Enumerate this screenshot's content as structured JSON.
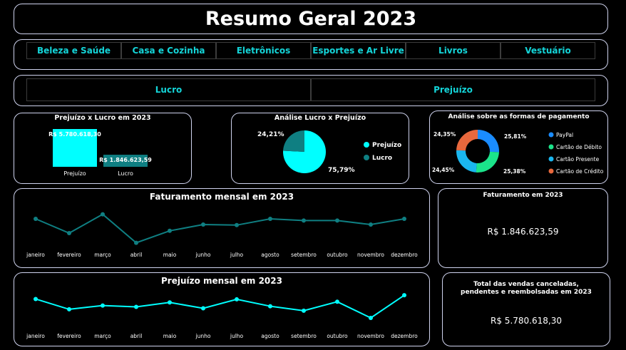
{
  "title": "Resumo Geral 2023",
  "categories": [
    "Beleza e Saúde",
    "Casa e Cozinha",
    "Eletrônicos",
    "Esportes e Ar Livre",
    "Livros",
    "Vestuário"
  ],
  "result_types": [
    "Lucro",
    "Prejuízo"
  ],
  "colors": {
    "accent": "#00ffff",
    "teal": "#0f7f82",
    "border": "#cfd3ee",
    "filter_text": "#14d4d8"
  },
  "bar_card": {
    "title": "Prejuízo x Lucro em 2023",
    "chart_data": {
      "type": "bar",
      "categories": [
        "Prejuízo",
        "Lucro"
      ],
      "values": [
        5780618.3,
        1846623.59
      ],
      "value_labels": [
        "R$ 5.780.618,30",
        "R$ 1.846.623,59"
      ],
      "colors": [
        "#00ffff",
        "#0f7f82"
      ]
    }
  },
  "pie_card": {
    "title": "Análise Lucro x Prejuízo",
    "chart_data": {
      "type": "pie",
      "labels": [
        "Prejuízo",
        "Lucro"
      ],
      "values": [
        75.79,
        24.21
      ],
      "value_labels": [
        "75,79%",
        "24,21%"
      ],
      "colors": [
        "#00ffff",
        "#0f7f82"
      ],
      "legend_position": "right"
    }
  },
  "donut_card": {
    "title": "Análise sobre as formas de pagamento",
    "chart_data": {
      "type": "pie",
      "labels": [
        "PayPal",
        "Cartão de Débito",
        "Cartão Presente",
        "Cartão de Crédito"
      ],
      "values": [
        25.81,
        25.38,
        24.45,
        24.35
      ],
      "value_labels": [
        "25,81%",
        "25,38%",
        "24,45%",
        "24,35%"
      ],
      "colors": [
        "#1a8cff",
        "#1be38a",
        "#1ab6ef",
        "#e8683d"
      ],
      "legend_position": "right"
    }
  },
  "fat_chart": {
    "title": "Faturamento mensal em 2023",
    "chart_data": {
      "type": "line",
      "categories": [
        "janeiro",
        "fevereiro",
        "março",
        "abril",
        "maio",
        "junho",
        "julho",
        "agosto",
        "setembro",
        "outubro",
        "novembro",
        "dezembro"
      ],
      "values": [
        160,
        135,
        168,
        118,
        139,
        150,
        149,
        160,
        157,
        157,
        150,
        160
      ],
      "ylim": [
        100,
        180
      ],
      "color": "#0f7f82"
    }
  },
  "prej_chart": {
    "title": "Prejuízo mensal em 2023",
    "chart_data": {
      "type": "line",
      "categories": [
        "janeiro",
        "fevereiro",
        "março",
        "abril",
        "maio",
        "junho",
        "julho",
        "agosto",
        "setembro",
        "outubro",
        "novembro",
        "dezembro"
      ],
      "values": [
        480,
        450,
        461,
        457,
        470,
        453,
        479,
        459,
        446,
        472,
        425,
        491
      ],
      "ylim": [
        400,
        510
      ],
      "color": "#00ffff"
    }
  },
  "kpi_fat": {
    "title": "Faturamento em 2023",
    "value": "R$ 1.846.623,59"
  },
  "kpi_cancel": {
    "title": "Total das vendas canceladas, pendentes e reembolsadas em 2023",
    "value": "R$ 5.780.618,30"
  }
}
